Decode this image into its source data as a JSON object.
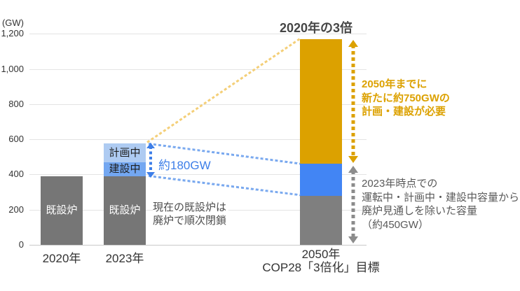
{
  "chart_data": {
    "type": "bar",
    "stacked": true,
    "unit": "GW",
    "unit_label": "(GW)",
    "ylim": [
      0,
      1200
    ],
    "grid": true,
    "y_ticks": [
      {
        "value": 0,
        "label": "0"
      },
      {
        "value": 200,
        "label": "200"
      },
      {
        "value": 400,
        "label": "400"
      },
      {
        "value": 600,
        "label": "600"
      },
      {
        "value": 800,
        "label": "800"
      },
      {
        "value": 1000,
        "label": "1,000"
      },
      {
        "value": 1200,
        "label": "1,200"
      }
    ],
    "categories": [
      "2020年",
      "2023年",
      "2050年 COP28「3倍化」目標"
    ],
    "bars": [
      {
        "category": "2020年",
        "total": 390,
        "segments": [
          {
            "label": "既設炉",
            "value": 390,
            "color": "#767676",
            "label_color": "#ffffff"
          }
        ]
      },
      {
        "category": "2023年",
        "total": 575,
        "segments": [
          {
            "label": "既設炉",
            "value": 390,
            "color": "#767676",
            "label_color": "#ffffff"
          },
          {
            "label": "建設中",
            "value": 80,
            "color": "#73A7F1",
            "label_color": "#1f1f1f"
          },
          {
            "label": "計画中",
            "value": 105,
            "color": "#AECBF2",
            "label_color": "#1f1f1f"
          }
        ]
      },
      {
        "category": "2050年 COP28「3倍化」目標",
        "total": 1170,
        "segments": [
          {
            "label": "",
            "value": 280,
            "color": "#7F7F7F",
            "label_color": "#ffffff"
          },
          {
            "label": "",
            "value": 180,
            "color": "#4285F4",
            "label_color": "#ffffff"
          },
          {
            "label": "",
            "value": 710,
            "color": "#DCA100",
            "label_color": "#ffffff"
          }
        ]
      }
    ]
  },
  "x_axis": {
    "label_2020": "2020年",
    "label_2023": "2023年",
    "label_2050_line1": "2050年",
    "label_2050_line2": "COP28「3倍化」目標"
  },
  "annotations": {
    "top_title": "2020年の3倍",
    "gap_180": "約180GW",
    "existing_note_line1": "現在の既設炉は",
    "existing_note_line2": "廃炉で順次閉鎖",
    "orange_note_line1": "2050年までに",
    "orange_note_line2": "新たに約750GWの",
    "orange_note_line3": "計画・建設が必要",
    "gray_note_line1": "2023年時点での",
    "gray_note_line2": "運転中・計画中・建設中容量から",
    "gray_note_line3": "廃炉見通しを除いた容量",
    "gray_note_line4": "（約450GW）"
  },
  "colors": {
    "bar_existing_gray": "#767676",
    "bar_2050_gray": "#7F7F7F",
    "bar_2050_blue": "#4285F4",
    "bar_2050_orange": "#DCA100",
    "segment_construction_blue": "#73A7F1",
    "segment_planned_blue": "#AECBF2",
    "annotation_blue": "#3D7EE8",
    "annotation_orange": "#DCA100",
    "annotation_orange_light": "#F4CF78",
    "annotation_gray_arrow": "#8C8C8C",
    "diagonal_blue": "#7AA9EF",
    "note_text_dark": "#595959",
    "gridline": "#E4E4E4",
    "axis_line": "#C9C9C9"
  }
}
